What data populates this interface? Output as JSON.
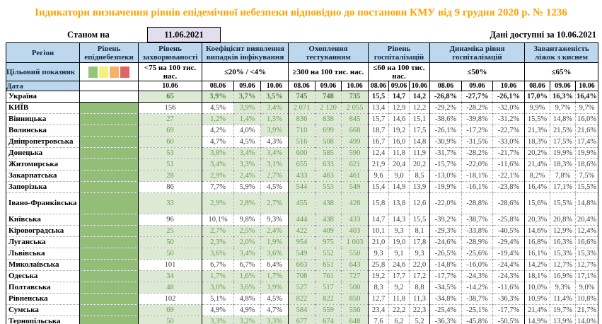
{
  "title": "Індикатори визначення рівнів епідемічної небезпеки відповідно до постанови КМУ від 9 грудня 2020 р. № 1236",
  "as_of": {
    "label": "Станом на",
    "date": "11.06.2021"
  },
  "available": "Дані доступні за 10.06.2021",
  "header": {
    "region": "Регіон",
    "danger": "Рівень епіднебезпеки",
    "incidence": "Рівень захворюваності",
    "detection": "Коефіцієнт виявлення випадків інфікування",
    "testing": "Охоплення тестуванням",
    "hospitalization": "Рівень госпіталізацій",
    "hosp_dynamics": "Динаміка рівня госпіталізацій",
    "bed_occupancy": "Завантаженість ліжок з киснем",
    "target_label": "Цільовий показник",
    "date_label": "Дата"
  },
  "targets": {
    "incidence": "<75 на 100 тис. нас.",
    "detection": "≤20% / <4%",
    "testing": "≥300 на 100 тис. нас.",
    "hospitalization": "≤60 на 100 тис. нас.",
    "hosp_dynamics": "≤50%",
    "bed_occupancy": "≤65%"
  },
  "dates": {
    "single": "10.06",
    "t": [
      "08.06",
      "09.06",
      "10.06"
    ]
  },
  "legend": {
    "colors": [
      "#93C47D",
      "#F6F07E",
      "#F6B26B",
      "#E06666"
    ],
    "names": [
      "green-level",
      "yellow-level",
      "orange-level",
      "red-level"
    ]
  },
  "rows": [
    {
      "region": "Україна",
      "bold": true,
      "danger": false,
      "inc": "65",
      "inc_ok": true,
      "det": [
        "3,9%",
        "3,7%",
        "3,5%"
      ],
      "det_ok": [
        true,
        true,
        true
      ],
      "test": [
        "745",
        "748",
        "735"
      ],
      "hosp": [
        "15,5",
        "14,7",
        "14,2"
      ],
      "dyn": [
        "-26,8%",
        "-27,7%",
        "-26,1%"
      ],
      "beds": [
        "17,0%",
        "16,3%",
        "16,4%"
      ]
    },
    {
      "region": "КИЇВ",
      "danger": true,
      "inc": "156",
      "inc_ok": false,
      "det": [
        "4,5%",
        "3,9%",
        "3,4%"
      ],
      "det_ok": [
        false,
        true,
        true
      ],
      "test": [
        "2 071",
        "2 120",
        "2 055"
      ],
      "hosp": [
        "13,4",
        "12,9",
        "12,2"
      ],
      "dyn": [
        "-29,2%",
        "-28,2%",
        "-32,0%"
      ],
      "beds": [
        "9,9%",
        "9,7%",
        "9,7%"
      ]
    },
    {
      "region": "Вінницька",
      "danger": true,
      "inc": "27",
      "inc_ok": true,
      "det": [
        "1,2%",
        "1,4%",
        "1,5%"
      ],
      "det_ok": [
        true,
        true,
        true
      ],
      "test": [
        "836",
        "838",
        "845"
      ],
      "hosp": [
        "15,7",
        "14,6",
        "15,1"
      ],
      "dyn": [
        "-38,6%",
        "-39,8%",
        "-31,2%"
      ],
      "beds": [
        "15,5%",
        "14,8%",
        "16,0%"
      ]
    },
    {
      "region": "Волинська",
      "danger": true,
      "inc": "69",
      "inc_ok": true,
      "det": [
        "4,2%",
        "4,0%",
        "3,9%"
      ],
      "det_ok": [
        false,
        false,
        true
      ],
      "test": [
        "710",
        "699",
        "668"
      ],
      "hosp": [
        "18,7",
        "19,2",
        "17,5"
      ],
      "dyn": [
        "-26,1%",
        "-17,2%",
        "-22,7%"
      ],
      "beds": [
        "21,3%",
        "21,5%",
        "21,6%"
      ]
    },
    {
      "region": "Дніпропетровська",
      "danger": true,
      "inc": "60",
      "inc_ok": true,
      "det": [
        "4,7%",
        "4,5%",
        "4,3%"
      ],
      "det_ok": [
        false,
        false,
        false
      ],
      "test": [
        "516",
        "508",
        "499"
      ],
      "hosp": [
        "16,7",
        "16,0",
        "14,8"
      ],
      "dyn": [
        "-30,9%",
        "-31,5%",
        "-33,0%"
      ],
      "beds": [
        "18,3%",
        "17,5%",
        "17,4%"
      ]
    },
    {
      "region": "Донецька",
      "danger": true,
      "inc": "53",
      "inc_ok": true,
      "det": [
        "3,8%",
        "3,4%",
        "3,4%"
      ],
      "det_ok": [
        true,
        true,
        true
      ],
      "test": [
        "600",
        "585",
        "590"
      ],
      "hosp": [
        "12,4",
        "11,8",
        "11,9"
      ],
      "dyn": [
        "-31,7%",
        "-28,2%",
        "-21,7%"
      ],
      "beds": [
        "20,2%",
        "19,9%",
        "19,9%"
      ]
    },
    {
      "region": "Житомирська",
      "danger": true,
      "inc": "51",
      "inc_ok": true,
      "det": [
        "3,4%",
        "3,3%",
        "3,1%"
      ],
      "det_ok": [
        true,
        true,
        true
      ],
      "test": [
        "655",
        "633",
        "621"
      ],
      "hosp": [
        "21,9",
        "20,4",
        "20,2"
      ],
      "dyn": [
        "-15,7%",
        "-22,0%",
        "-11,6%"
      ],
      "beds": [
        "21,4%",
        "18,3%",
        "18,6%"
      ]
    },
    {
      "region": "Закарпатська",
      "danger": true,
      "inc": "28",
      "inc_ok": true,
      "det": [
        "2,9%",
        "2,4%",
        "2,7%"
      ],
      "det_ok": [
        true,
        true,
        true
      ],
      "test": [
        "433",
        "463",
        "461"
      ],
      "hosp": [
        "9,6",
        "9,0",
        "8,5"
      ],
      "dyn": [
        "-13,0%",
        "-18,1%",
        "-22,1%"
      ],
      "beds": [
        "8,2%",
        "7,8%",
        "7,5%"
      ]
    },
    {
      "region": "Запорізька",
      "danger": true,
      "inc": "86",
      "inc_ok": false,
      "det": [
        "7,7%",
        "5,9%",
        "4,5%"
      ],
      "det_ok": [
        false,
        false,
        false
      ],
      "test": [
        "544",
        "553",
        "549"
      ],
      "hosp": [
        "15,4",
        "14,9",
        "13,9"
      ],
      "dyn": [
        "-19,9%",
        "-16,1%",
        "-23,8%"
      ],
      "beds": [
        "16,4%",
        "17,1%",
        "15,5%"
      ]
    },
    {
      "region": "Івано-Франківська",
      "tall": true,
      "danger": true,
      "inc": "33",
      "inc_ok": true,
      "det": [
        "2,9%",
        "2,8%",
        "2,7%"
      ],
      "det_ok": [
        true,
        true,
        true
      ],
      "test": [
        "455",
        "438",
        "428"
      ],
      "hosp": [
        "15,8",
        "13,8",
        "12,6"
      ],
      "dyn": [
        "-22,0%",
        "-28,8%",
        "-28,6%"
      ],
      "beds": [
        "15,6%",
        "15,5%",
        "14,8%"
      ]
    },
    {
      "region": "Київська",
      "danger": true,
      "inc": "96",
      "inc_ok": false,
      "det": [
        "10,1%",
        "9,8%",
        "9,3%"
      ],
      "det_ok": [
        false,
        false,
        false
      ],
      "test": [
        "444",
        "438",
        "433"
      ],
      "hosp": [
        "14,7",
        "14,3",
        "15,5"
      ],
      "dyn": [
        "-39,2%",
        "-38,7%",
        "-25,8%"
      ],
      "beds": [
        "20,3%",
        "20,8%",
        "20,4%"
      ]
    },
    {
      "region": "Кіровоградська",
      "danger": true,
      "inc": "25",
      "inc_ok": true,
      "det": [
        "2,7%",
        "2,5%",
        "2,4%"
      ],
      "det_ok": [
        true,
        true,
        true
      ],
      "test": [
        "422",
        "409",
        "403"
      ],
      "hosp": [
        "10,1",
        "9,3",
        "8,1"
      ],
      "dyn": [
        "-29,3%",
        "-33,8%",
        "-40,5%"
      ],
      "beds": [
        "14,6%",
        "12,9%",
        "12,4%"
      ]
    },
    {
      "region": "Луганська",
      "danger": true,
      "inc": "50",
      "inc_ok": true,
      "det": [
        "2,3%",
        "2,0%",
        "1,9%"
      ],
      "det_ok": [
        true,
        true,
        true
      ],
      "test": [
        "954",
        "975",
        "1 003"
      ],
      "hosp": [
        "21,0",
        "19,0",
        "17,8"
      ],
      "dyn": [
        "-24,6%",
        "-28,9%",
        "-29,4%"
      ],
      "beds": [
        "16,8%",
        "16,3%",
        "16,6%"
      ]
    },
    {
      "region": "Львівська",
      "danger": true,
      "inc": "50",
      "inc_ok": true,
      "det": [
        "3,6%",
        "3,4%",
        "3,6%"
      ],
      "det_ok": [
        true,
        true,
        true
      ],
      "test": [
        "549",
        "552",
        "550"
      ],
      "hosp": [
        "9,3",
        "9,1",
        "9,3"
      ],
      "dyn": [
        "-26,5%",
        "-25,6%",
        "-19,4%"
      ],
      "beds": [
        "16,1%",
        "15,3%",
        "15,3%"
      ]
    },
    {
      "region": "Миколаївська",
      "danger": true,
      "inc": "101",
      "inc_ok": false,
      "det": [
        "6,7%",
        "6,7%",
        "6,4%"
      ],
      "det_ok": [
        false,
        false,
        false
      ],
      "test": [
        "663",
        "651",
        "643"
      ],
      "hosp": [
        "25,8",
        "24,6",
        "22,0"
      ],
      "dyn": [
        "-14,8%",
        "-16,0%",
        "-24,4%"
      ],
      "beds": [
        "14,2%",
        "12,7%",
        "12,7%"
      ]
    },
    {
      "region": "Одеська",
      "danger": true,
      "inc": "34",
      "inc_ok": true,
      "det": [
        "1,7%",
        "1,6%",
        "1,7%"
      ],
      "det_ok": [
        true,
        true,
        true
      ],
      "test": [
        "708",
        "761",
        "727"
      ],
      "hosp": [
        "19,2",
        "17,7",
        "17,2"
      ],
      "dyn": [
        "-17,7%",
        "-24,3%",
        "-24,3%"
      ],
      "beds": [
        "18,1%",
        "16,9%",
        "17,1%"
      ]
    },
    {
      "region": "Полтавська",
      "danger": true,
      "inc": "48",
      "inc_ok": true,
      "det": [
        "3,0%",
        "3,6%",
        "3,9%"
      ],
      "det_ok": [
        true,
        true,
        true
      ],
      "test": [
        "527",
        "517",
        "500"
      ],
      "hosp": [
        "8,3",
        "9,2",
        "8,8"
      ],
      "dyn": [
        "-34,5%",
        "-14,2%",
        "-11,6%"
      ],
      "beds": [
        "10,0%",
        "9,3%",
        "9,0%"
      ]
    },
    {
      "region": "Рівненська",
      "danger": true,
      "inc": "102",
      "inc_ok": false,
      "det": [
        "5,1%",
        "4,8%",
        "4,5%"
      ],
      "det_ok": [
        false,
        false,
        false
      ],
      "test": [
        "822",
        "822",
        "850"
      ],
      "hosp": [
        "12,7",
        "11,8",
        "11,3"
      ],
      "dyn": [
        "-34,8%",
        "-38,7%",
        "-36,3%"
      ],
      "beds": [
        "10,9%",
        "11,4%",
        "10,8%"
      ]
    },
    {
      "region": "Сумська",
      "danger": true,
      "inc": "69",
      "inc_ok": true,
      "det": [
        "4,9%",
        "4,9%",
        "4,7%"
      ],
      "det_ok": [
        false,
        false,
        false
      ],
      "test": [
        "584",
        "559",
        "556"
      ],
      "hosp": [
        "23,4",
        "22,2",
        "22,3"
      ],
      "dyn": [
        "-25,4%",
        "-25,1%",
        "-17,7%"
      ],
      "beds": [
        "21,4%",
        "19,7%",
        "21,7%"
      ]
    },
    {
      "region": "Тернопільська",
      "danger": true,
      "inc": "50",
      "inc_ok": true,
      "det": [
        "3,3%",
        "3,2%",
        "3,3%"
      ],
      "det_ok": [
        true,
        true,
        true
      ],
      "test": [
        "677",
        "674",
        "648"
      ],
      "hosp": [
        "7,6",
        "6,2",
        "5,2"
      ],
      "dyn": [
        "-36,3%",
        "-45,8%",
        "-50,5%"
      ],
      "beds": [
        "14,9%",
        "13,9%",
        "14,0%"
      ]
    }
  ]
}
